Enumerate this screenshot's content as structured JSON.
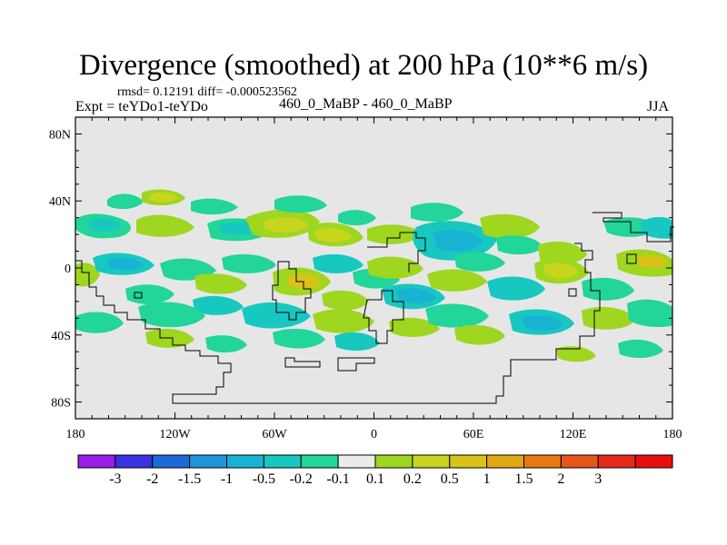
{
  "header": {
    "title": "Divergence (smoothed) at 200 hPa (10**6 m/s)",
    "stats": "rmsd= 0.12191 diff= -0.000523562",
    "experiment": "Expt = teYDo1-teYDo",
    "subtitle": "460_0_MaBP - 460_0_MaBP",
    "season": "JJA"
  },
  "chart_data": {
    "type": "heatmap",
    "title": "Divergence (smoothed) at 200 hPa (10**6 m/s)",
    "variable": "divergence",
    "level": "200 hPa",
    "units": "10**6 m/s",
    "x_range": [
      -180,
      180
    ],
    "y_range": [
      -90,
      90
    ],
    "x_ticks": [
      {
        "value": -180,
        "label": "180"
      },
      {
        "value": -120,
        "label": "120W"
      },
      {
        "value": -60,
        "label": "60W"
      },
      {
        "value": 0,
        "label": "0"
      },
      {
        "value": 60,
        "label": "60E"
      },
      {
        "value": 120,
        "label": "120E"
      },
      {
        "value": 180,
        "label": "180"
      }
    ],
    "y_ticks": [
      {
        "value": 80,
        "label": "80N"
      },
      {
        "value": 40,
        "label": "40N"
      },
      {
        "value": 0,
        "label": "0"
      },
      {
        "value": -40,
        "label": "40S"
      },
      {
        "value": -80,
        "label": "80S"
      }
    ],
    "background_color": "#e6e6e6",
    "colorbar": {
      "colors": [
        "#9b1de8",
        "#3a33e0",
        "#1b6ad8",
        "#1f95db",
        "#18b3d3",
        "#17c8c0",
        "#22d59a",
        "#ebebeb",
        "#9ed620",
        "#c7d51d",
        "#d8c318",
        "#e0a814",
        "#e57a12",
        "#e5561a",
        "#e42a1a",
        "#e60e0e"
      ],
      "labels": [
        "-3",
        "-2",
        "-1.5",
        "-1",
        "-0.5",
        "-0.2",
        "-0.1",
        "0.1",
        "0.2",
        "0.5",
        "1",
        "1.5",
        "2",
        "3"
      ]
    },
    "regions": [
      {
        "lon": -158,
        "lat": 16,
        "category": "negative"
      },
      {
        "lon": -148,
        "lat": -2,
        "category": "negative"
      },
      {
        "lon": -110,
        "lat": 23,
        "category": "negative"
      },
      {
        "lon": -92,
        "lat": 9,
        "category": "negative"
      },
      {
        "lon": -82,
        "lat": -38,
        "category": "negative"
      },
      {
        "lon": -50,
        "lat": 13,
        "category": "positive"
      },
      {
        "lon": -38,
        "lat": -12,
        "category": "positive"
      },
      {
        "lon": -20,
        "lat": 16,
        "category": "positive"
      },
      {
        "lon": 12,
        "lat": -18,
        "category": "negative"
      },
      {
        "lon": 40,
        "lat": 9,
        "category": "negative"
      },
      {
        "lon": 60,
        "lat": -30,
        "category": "negative"
      },
      {
        "lon": 85,
        "lat": -18,
        "category": "negative"
      },
      {
        "lon": 108,
        "lat": -8,
        "category": "positive"
      },
      {
        "lon": 148,
        "lat": -20,
        "category": "negative"
      },
      {
        "lon": 172,
        "lat": 8,
        "category": "positive"
      }
    ]
  }
}
